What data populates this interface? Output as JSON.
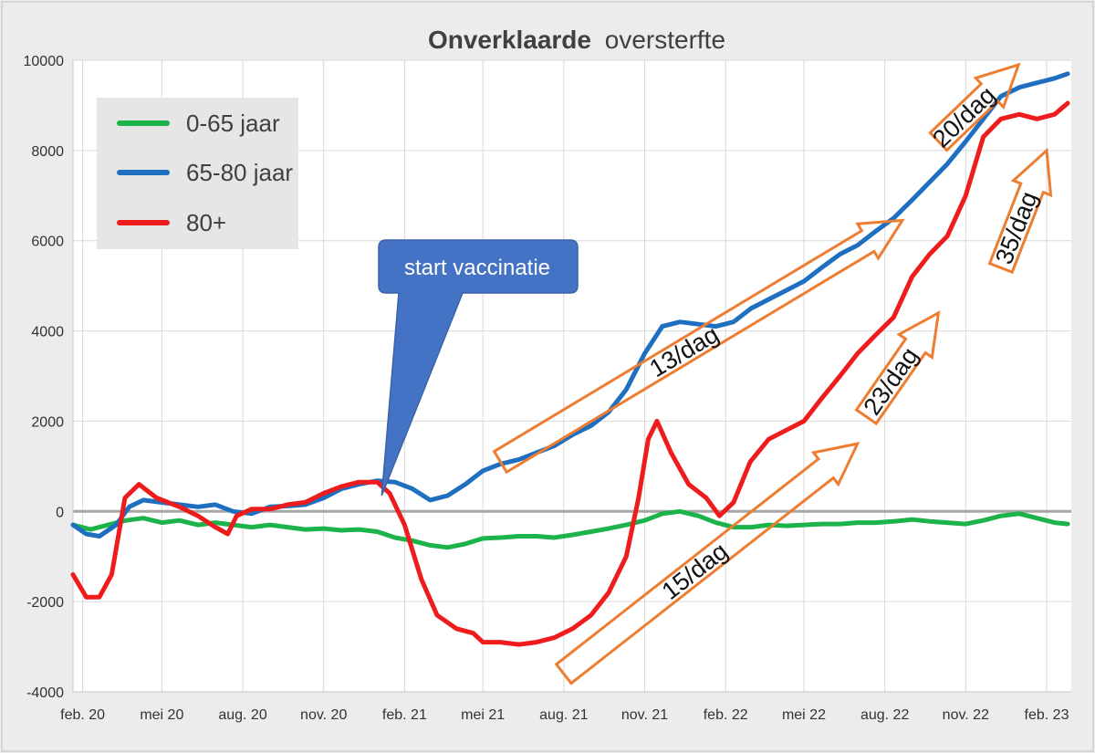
{
  "chart_data": {
    "type": "line",
    "title_bold": "Onverklaarde",
    "title_rest": "oversterfte",
    "xlabel": "",
    "ylabel": "",
    "ylim": [
      -4000,
      10000
    ],
    "yticks": [
      -4000,
      -2000,
      0,
      2000,
      4000,
      6000,
      8000,
      10000
    ],
    "xlim": [
      "2020-01-21",
      "2023-03-01"
    ],
    "xticks": [
      {
        "date": "2020-02-01",
        "label": "feb. 20"
      },
      {
        "date": "2020-05-01",
        "label": "mei 20"
      },
      {
        "date": "2020-08-01",
        "label": "aug. 20"
      },
      {
        "date": "2020-11-01",
        "label": "nov. 20"
      },
      {
        "date": "2021-02-01",
        "label": "feb. 21"
      },
      {
        "date": "2021-05-01",
        "label": "mei 21"
      },
      {
        "date": "2021-08-01",
        "label": "aug. 21"
      },
      {
        "date": "2021-11-01",
        "label": "nov. 21"
      },
      {
        "date": "2022-02-01",
        "label": "feb. 22"
      },
      {
        "date": "2022-05-01",
        "label": "mei 22"
      },
      {
        "date": "2022-08-01",
        "label": "aug. 22"
      },
      {
        "date": "2022-11-01",
        "label": "nov. 22"
      },
      {
        "date": "2023-02-01",
        "label": "feb. 23"
      }
    ],
    "grid": true,
    "legend_placement": "top-left",
    "series": [
      {
        "name": "0-65 jaar",
        "color": "#1cb34a",
        "points": [
          [
            "2020-01-21",
            -300
          ],
          [
            "2020-02-10",
            -400
          ],
          [
            "2020-03-01",
            -300
          ],
          [
            "2020-03-21",
            -200
          ],
          [
            "2020-04-10",
            -150
          ],
          [
            "2020-05-01",
            -250
          ],
          [
            "2020-05-21",
            -200
          ],
          [
            "2020-06-11",
            -300
          ],
          [
            "2020-07-01",
            -250
          ],
          [
            "2020-07-21",
            -300
          ],
          [
            "2020-08-11",
            -350
          ],
          [
            "2020-09-01",
            -300
          ],
          [
            "2020-09-21",
            -350
          ],
          [
            "2020-10-11",
            -400
          ],
          [
            "2020-11-01",
            -380
          ],
          [
            "2020-11-21",
            -420
          ],
          [
            "2020-12-11",
            -400
          ],
          [
            "2021-01-01",
            -450
          ],
          [
            "2021-01-21",
            -580
          ],
          [
            "2021-02-10",
            -650
          ],
          [
            "2021-03-02",
            -750
          ],
          [
            "2021-03-22",
            -800
          ],
          [
            "2021-04-11",
            -720
          ],
          [
            "2021-05-01",
            -600
          ],
          [
            "2021-05-21",
            -580
          ],
          [
            "2021-06-11",
            -550
          ],
          [
            "2021-07-01",
            -550
          ],
          [
            "2021-07-21",
            -580
          ],
          [
            "2021-08-11",
            -520
          ],
          [
            "2021-09-01",
            -450
          ],
          [
            "2021-09-21",
            -380
          ],
          [
            "2021-10-11",
            -300
          ],
          [
            "2021-11-01",
            -200
          ],
          [
            "2021-11-21",
            -50
          ],
          [
            "2021-12-11",
            0
          ],
          [
            "2022-01-01",
            -100
          ],
          [
            "2022-01-21",
            -250
          ],
          [
            "2022-02-10",
            -350
          ],
          [
            "2022-03-02",
            -350
          ],
          [
            "2022-03-22",
            -300
          ],
          [
            "2022-04-11",
            -320
          ],
          [
            "2022-05-01",
            -300
          ],
          [
            "2022-05-21",
            -280
          ],
          [
            "2022-06-11",
            -280
          ],
          [
            "2022-07-01",
            -250
          ],
          [
            "2022-07-21",
            -250
          ],
          [
            "2022-08-11",
            -220
          ],
          [
            "2022-09-01",
            -180
          ],
          [
            "2022-09-21",
            -220
          ],
          [
            "2022-10-11",
            -250
          ],
          [
            "2022-11-01",
            -280
          ],
          [
            "2022-11-21",
            -200
          ],
          [
            "2022-12-11",
            -100
          ],
          [
            "2023-01-01",
            -50
          ],
          [
            "2023-01-21",
            -150
          ],
          [
            "2023-02-10",
            -250
          ],
          [
            "2023-02-25",
            -280
          ]
        ]
      },
      {
        "name": "65-80 jaar",
        "color": "#1f6fc0",
        "points": [
          [
            "2020-01-21",
            -300
          ],
          [
            "2020-02-05",
            -500
          ],
          [
            "2020-02-20",
            -550
          ],
          [
            "2020-03-10",
            -300
          ],
          [
            "2020-03-25",
            100
          ],
          [
            "2020-04-10",
            250
          ],
          [
            "2020-04-30",
            200
          ],
          [
            "2020-05-21",
            150
          ],
          [
            "2020-06-11",
            100
          ],
          [
            "2020-07-01",
            150
          ],
          [
            "2020-07-21",
            0
          ],
          [
            "2020-08-11",
            -50
          ],
          [
            "2020-09-01",
            100
          ],
          [
            "2020-09-21",
            120
          ],
          [
            "2020-10-11",
            150
          ],
          [
            "2020-11-01",
            300
          ],
          [
            "2020-11-21",
            500
          ],
          [
            "2020-12-11",
            600
          ],
          [
            "2021-01-01",
            680
          ],
          [
            "2021-01-21",
            650
          ],
          [
            "2021-02-10",
            500
          ],
          [
            "2021-03-02",
            250
          ],
          [
            "2021-03-22",
            350
          ],
          [
            "2021-04-11",
            600
          ],
          [
            "2021-05-01",
            900
          ],
          [
            "2021-05-21",
            1050
          ],
          [
            "2021-06-11",
            1150
          ],
          [
            "2021-07-01",
            1300
          ],
          [
            "2021-07-21",
            1450
          ],
          [
            "2021-08-11",
            1700
          ],
          [
            "2021-09-01",
            1900
          ],
          [
            "2021-09-21",
            2200
          ],
          [
            "2021-10-11",
            2700
          ],
          [
            "2021-11-01",
            3500
          ],
          [
            "2021-11-21",
            4100
          ],
          [
            "2021-12-11",
            4200
          ],
          [
            "2022-01-01",
            4150
          ],
          [
            "2022-01-21",
            4100
          ],
          [
            "2022-02-10",
            4200
          ],
          [
            "2022-03-02",
            4500
          ],
          [
            "2022-03-22",
            4700
          ],
          [
            "2022-04-11",
            4900
          ],
          [
            "2022-05-01",
            5100
          ],
          [
            "2022-05-21",
            5400
          ],
          [
            "2022-06-11",
            5700
          ],
          [
            "2022-07-01",
            5900
          ],
          [
            "2022-07-21",
            6200
          ],
          [
            "2022-08-11",
            6500
          ],
          [
            "2022-09-01",
            6900
          ],
          [
            "2022-09-21",
            7300
          ],
          [
            "2022-10-11",
            7700
          ],
          [
            "2022-11-01",
            8200
          ],
          [
            "2022-11-21",
            8700
          ],
          [
            "2022-12-11",
            9200
          ],
          [
            "2023-01-01",
            9400
          ],
          [
            "2023-01-21",
            9500
          ],
          [
            "2023-02-10",
            9600
          ],
          [
            "2023-02-25",
            9700
          ]
        ]
      },
      {
        "name": "80+",
        "color": "#ee1c1c",
        "points": [
          [
            "2020-01-21",
            -1400
          ],
          [
            "2020-02-05",
            -1900
          ],
          [
            "2020-02-20",
            -1900
          ],
          [
            "2020-03-05",
            -1400
          ],
          [
            "2020-03-20",
            300
          ],
          [
            "2020-04-05",
            600
          ],
          [
            "2020-04-25",
            300
          ],
          [
            "2020-05-21",
            100
          ],
          [
            "2020-06-11",
            -100
          ],
          [
            "2020-07-01",
            -350
          ],
          [
            "2020-07-15",
            -500
          ],
          [
            "2020-07-25",
            -100
          ],
          [
            "2020-08-11",
            50
          ],
          [
            "2020-09-01",
            50
          ],
          [
            "2020-09-21",
            150
          ],
          [
            "2020-10-11",
            200
          ],
          [
            "2020-11-01",
            400
          ],
          [
            "2020-11-21",
            550
          ],
          [
            "2020-12-11",
            650
          ],
          [
            "2021-01-01",
            650
          ],
          [
            "2021-01-15",
            400
          ],
          [
            "2021-02-01",
            -300
          ],
          [
            "2021-02-20",
            -1500
          ],
          [
            "2021-03-10",
            -2300
          ],
          [
            "2021-04-01",
            -2600
          ],
          [
            "2021-04-20",
            -2700
          ],
          [
            "2021-05-01",
            -2900
          ],
          [
            "2021-05-21",
            -2900
          ],
          [
            "2021-06-11",
            -2950
          ],
          [
            "2021-07-01",
            -2900
          ],
          [
            "2021-07-21",
            -2800
          ],
          [
            "2021-08-11",
            -2600
          ],
          [
            "2021-09-01",
            -2300
          ],
          [
            "2021-09-21",
            -1800
          ],
          [
            "2021-10-11",
            -1000
          ],
          [
            "2021-10-25",
            300
          ],
          [
            "2021-11-05",
            1600
          ],
          [
            "2021-11-15",
            2000
          ],
          [
            "2021-12-01",
            1300
          ],
          [
            "2021-12-21",
            600
          ],
          [
            "2022-01-10",
            300
          ],
          [
            "2022-01-25",
            -100
          ],
          [
            "2022-02-10",
            200
          ],
          [
            "2022-03-01",
            1100
          ],
          [
            "2022-03-22",
            1600
          ],
          [
            "2022-04-11",
            1800
          ],
          [
            "2022-05-01",
            2000
          ],
          [
            "2022-05-21",
            2500
          ],
          [
            "2022-06-11",
            3000
          ],
          [
            "2022-07-01",
            3500
          ],
          [
            "2022-07-21",
            3900
          ],
          [
            "2022-08-11",
            4300
          ],
          [
            "2022-09-01",
            5200
          ],
          [
            "2022-09-21",
            5700
          ],
          [
            "2022-10-11",
            6100
          ],
          [
            "2022-11-01",
            7000
          ],
          [
            "2022-11-21",
            8300
          ],
          [
            "2022-12-11",
            8700
          ],
          [
            "2023-01-01",
            8800
          ],
          [
            "2023-01-21",
            8700
          ],
          [
            "2023-02-10",
            8800
          ],
          [
            "2023-02-25",
            9050
          ]
        ]
      }
    ],
    "callout": {
      "text": "start vaccinatie",
      "pointer_date": "2021-01-06",
      "pointer_value": 350,
      "fill": "#4472c4"
    },
    "annotations": [
      {
        "text": "13/dag",
        "from_date": "2021-05-21",
        "from_value": 1100,
        "to_date": "2022-08-21",
        "to_value": 6450
      },
      {
        "text": "15/dag",
        "from_date": "2021-08-01",
        "from_value": -3600,
        "to_date": "2022-07-01",
        "to_value": 1500
      },
      {
        "text": "23/dag",
        "from_date": "2022-07-11",
        "from_value": 2100,
        "to_date": "2022-10-01",
        "to_value": 4400
      },
      {
        "text": "20/dag",
        "from_date": "2022-10-01",
        "from_value": 8200,
        "to_date": "2022-12-31",
        "to_value": 9900
      },
      {
        "text": "35/dag",
        "from_date": "2022-12-11",
        "from_value": 5400,
        "to_date": "2023-02-01",
        "to_value": 8000
      }
    ],
    "annotation_color": "#ed7d31",
    "zero_line_color": "#a6a6a6"
  }
}
